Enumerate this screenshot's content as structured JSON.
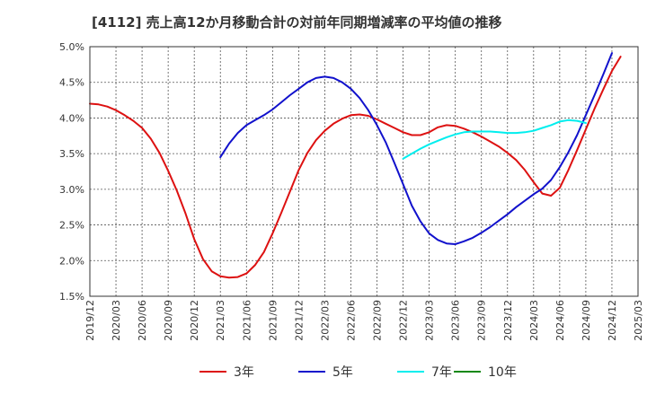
{
  "chart_data": {
    "type": "line",
    "title": "[4112]  売上高12か月移動合計の対前年同期増減率の平均値の推移",
    "xlabel": "",
    "ylabel": "",
    "ylim": [
      0.015,
      0.05
    ],
    "yticks": [
      "5.0%",
      "4.5%",
      "4.0%",
      "3.5%",
      "3.0%",
      "2.5%",
      "2.0%",
      "1.5%"
    ],
    "ytick_values": [
      0.05,
      0.045,
      0.04,
      0.035,
      0.03,
      0.025,
      0.02,
      0.015
    ],
    "xticks": [
      "2019/12",
      "2020/03",
      "2020/06",
      "2020/09",
      "2020/12",
      "2021/03",
      "2021/06",
      "2021/09",
      "2021/12",
      "2022/03",
      "2022/06",
      "2022/09",
      "2022/12",
      "2023/03",
      "2023/06",
      "2023/09",
      "2023/12",
      "2024/03",
      "2024/06",
      "2024/09",
      "2024/12",
      "2025/03"
    ],
    "grid": true,
    "legend_position": "bottom",
    "series": [
      {
        "name": "3年",
        "color": "#dd1111",
        "start": "2019/12",
        "values": [
          0.042,
          0.0419,
          0.0416,
          0.0411,
          0.0404,
          0.0396,
          0.0386,
          0.0371,
          0.0351,
          0.0326,
          0.0298,
          0.0266,
          0.023,
          0.0202,
          0.0185,
          0.0178,
          0.0176,
          0.0177,
          0.0182,
          0.0194,
          0.0212,
          0.0238,
          0.0267,
          0.0297,
          0.0327,
          0.0351,
          0.0369,
          0.0382,
          0.0392,
          0.0399,
          0.0404,
          0.0405,
          0.0403,
          0.0398,
          0.0392,
          0.0386,
          0.038,
          0.0376,
          0.0376,
          0.038,
          0.0387,
          0.039,
          0.0389,
          0.0385,
          0.038,
          0.0374,
          0.0367,
          0.036,
          0.0351,
          0.0341,
          0.0327,
          0.031,
          0.0294,
          0.0291,
          0.0302,
          0.0327,
          0.0355,
          0.0384,
          0.0413,
          0.044,
          0.0466,
          0.0486
        ]
      },
      {
        "name": "5年",
        "color": "#1111cc",
        "start": "2021/03",
        "values": [
          0.0345,
          0.0364,
          0.0379,
          0.039,
          0.0397,
          0.0404,
          0.0412,
          0.0422,
          0.0432,
          0.0441,
          0.045,
          0.0456,
          0.0458,
          0.0456,
          0.045,
          0.0441,
          0.0428,
          0.0411,
          0.039,
          0.0366,
          0.0337,
          0.0307,
          0.0277,
          0.0255,
          0.0238,
          0.0229,
          0.0224,
          0.0223,
          0.0227,
          0.0232,
          0.0239,
          0.0247,
          0.0256,
          0.0265,
          0.0275,
          0.0284,
          0.0293,
          0.0301,
          0.0313,
          0.0331,
          0.0352,
          0.0376,
          0.0404,
          0.0432,
          0.0461,
          0.0491
        ]
      },
      {
        "name": "7年",
        "color": "#00eeee",
        "start": "2022/12",
        "values": [
          0.0343,
          0.035,
          0.0357,
          0.0363,
          0.0368,
          0.0373,
          0.0377,
          0.038,
          0.0381,
          0.0381,
          0.0381,
          0.038,
          0.0379,
          0.0379,
          0.038,
          0.0382,
          0.0386,
          0.039,
          0.0395,
          0.0397,
          0.0396,
          0.0393
        ]
      },
      {
        "name": "10年",
        "color": "#118811",
        "start": "2024/12",
        "values": []
      }
    ]
  }
}
